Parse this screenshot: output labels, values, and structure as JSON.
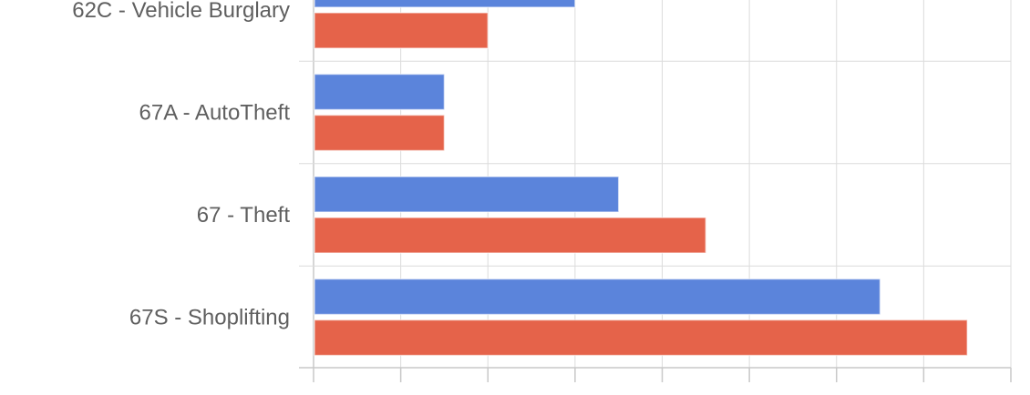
{
  "chart_data": {
    "type": "bar",
    "orientation": "horizontal",
    "categories": [
      "62C - Vehicle Burglary",
      "67A - AutoTheft",
      "67 - Theft",
      "67S - Shoplifting"
    ],
    "series": [
      {
        "values": [
          3,
          1.5,
          3.5,
          6.5
        ],
        "color": "#5b84db"
      },
      {
        "values": [
          2,
          1.5,
          4.5,
          7.5
        ],
        "color": "#e5634a"
      }
    ],
    "xlim": [
      0,
      8
    ],
    "grid": true,
    "legend": "none"
  }
}
